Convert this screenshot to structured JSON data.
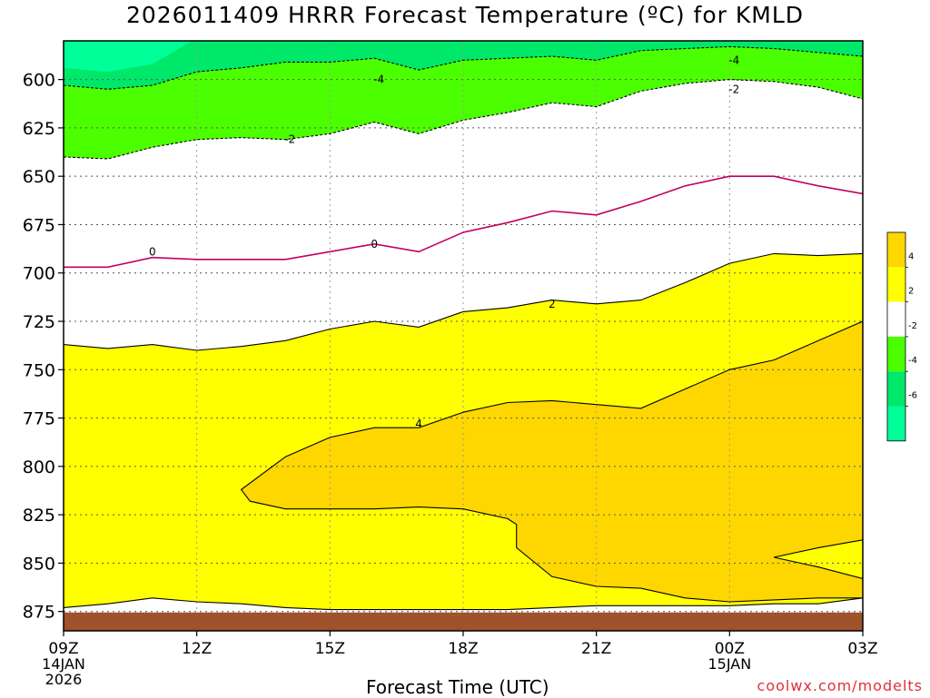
{
  "page": {
    "title": "2026011409 HRRR Forecast Temperature (ºC) for KMLD",
    "xlabel": "Forecast Time (UTC)",
    "credit": "coolwx.com/modelts"
  },
  "chart_data": {
    "type": "contour",
    "title": "2026011409 HRRR Forecast Temperature (ºC) for KMLD",
    "xlabel": "Forecast Time (UTC)",
    "ylabel": "",
    "x_range_hours": [
      0,
      18
    ],
    "ylim": [
      580,
      885
    ],
    "y_ticks": [
      {
        "label": "600",
        "value": 600
      },
      {
        "label": "625",
        "value": 625
      },
      {
        "label": "650",
        "value": 650
      },
      {
        "label": "675",
        "value": 675
      },
      {
        "label": "700",
        "value": 700
      },
      {
        "label": "725",
        "value": 725
      },
      {
        "label": "750",
        "value": 750
      },
      {
        "label": "775",
        "value": 775
      },
      {
        "label": "800",
        "value": 800
      },
      {
        "label": "825",
        "value": 825
      },
      {
        "label": "850",
        "value": 850
      },
      {
        "label": "875",
        "value": 875
      }
    ],
    "x_ticks": [
      {
        "hour": 0,
        "label": "09Z",
        "sub1": "14JAN",
        "sub2": "2026"
      },
      {
        "hour": 3,
        "label": "12Z",
        "sub1": "",
        "sub2": ""
      },
      {
        "hour": 6,
        "label": "15Z",
        "sub1": "",
        "sub2": ""
      },
      {
        "hour": 9,
        "label": "18Z",
        "sub1": "",
        "sub2": ""
      },
      {
        "hour": 12,
        "label": "21Z",
        "sub1": "",
        "sub2": ""
      },
      {
        "hour": 15,
        "label": "00Z",
        "sub1": "15JAN",
        "sub2": ""
      },
      {
        "hour": 18,
        "label": "03Z",
        "sub1": "",
        "sub2": ""
      }
    ],
    "contours": [
      {
        "level": -4,
        "style": "dashed",
        "color": "#000000",
        "points": [
          [
            0,
            603
          ],
          [
            1,
            605
          ],
          [
            2,
            603
          ],
          [
            3,
            596
          ],
          [
            4,
            594
          ],
          [
            5,
            591
          ],
          [
            6,
            591
          ],
          [
            7,
            589
          ],
          [
            8,
            595
          ],
          [
            9,
            590
          ],
          [
            10,
            589
          ],
          [
            11,
            588
          ],
          [
            12,
            590
          ],
          [
            13,
            585
          ],
          [
            14,
            584
          ],
          [
            15,
            583
          ],
          [
            16,
            584
          ],
          [
            17,
            586
          ],
          [
            18,
            588
          ]
        ]
      },
      {
        "level": -2,
        "style": "dashed",
        "color": "#000000",
        "points": [
          [
            0,
            640
          ],
          [
            1,
            641
          ],
          [
            2,
            635
          ],
          [
            3,
            631
          ],
          [
            4,
            630
          ],
          [
            5,
            631
          ],
          [
            6,
            628
          ],
          [
            7,
            622
          ],
          [
            8,
            628
          ],
          [
            9,
            621
          ],
          [
            10,
            617
          ],
          [
            11,
            612
          ],
          [
            12,
            614
          ],
          [
            13,
            606
          ],
          [
            14,
            602
          ],
          [
            15,
            600
          ],
          [
            16,
            601
          ],
          [
            17,
            604
          ],
          [
            18,
            610
          ]
        ]
      },
      {
        "level": 0,
        "style": "solid",
        "color": "#c00060",
        "points": [
          [
            0,
            697
          ],
          [
            1,
            697
          ],
          [
            2,
            692
          ],
          [
            3,
            693
          ],
          [
            4,
            693
          ],
          [
            5,
            693
          ],
          [
            6,
            689
          ],
          [
            7,
            685
          ],
          [
            8,
            689
          ],
          [
            9,
            679
          ],
          [
            10,
            674
          ],
          [
            11,
            668
          ],
          [
            12,
            670
          ],
          [
            13,
            663
          ],
          [
            14,
            655
          ],
          [
            15,
            650
          ],
          [
            16,
            650
          ],
          [
            17,
            655
          ],
          [
            18,
            659
          ]
        ]
      },
      {
        "level": 2,
        "style": "solid",
        "color": "#000000",
        "points": [
          [
            0,
            737
          ],
          [
            1,
            739
          ],
          [
            2,
            737
          ],
          [
            3,
            740
          ],
          [
            4,
            738
          ],
          [
            5,
            735
          ],
          [
            6,
            729
          ],
          [
            7,
            725
          ],
          [
            8,
            728
          ],
          [
            9,
            720
          ],
          [
            10,
            718
          ],
          [
            11,
            714
          ],
          [
            12,
            716
          ],
          [
            13,
            714
          ],
          [
            14,
            705
          ],
          [
            15,
            695
          ],
          [
            16,
            690
          ],
          [
            17,
            691
          ],
          [
            18,
            690
          ]
        ]
      },
      {
        "level": 4,
        "style": "solid",
        "color": "#000000",
        "points": [
          [
            18,
            725
          ],
          [
            17,
            735
          ],
          [
            16,
            745
          ],
          [
            15,
            750
          ],
          [
            14,
            760
          ],
          [
            13,
            770
          ],
          [
            12,
            768
          ],
          [
            11,
            766
          ],
          [
            10,
            767
          ],
          [
            9,
            772
          ],
          [
            8,
            780
          ],
          [
            7,
            780
          ],
          [
            6,
            785
          ],
          [
            5,
            795
          ],
          [
            4,
            812
          ],
          [
            4.2,
            818
          ],
          [
            5,
            822
          ],
          [
            6,
            822
          ],
          [
            7,
            822
          ],
          [
            8,
            821
          ],
          [
            9,
            822
          ],
          [
            10,
            827
          ],
          [
            10.2,
            830
          ],
          [
            10.2,
            842
          ],
          [
            11,
            857
          ],
          [
            12,
            862
          ],
          [
            13,
            863
          ],
          [
            14,
            868
          ],
          [
            15,
            870
          ],
          [
            16,
            869
          ],
          [
            17,
            868
          ],
          [
            18,
            868
          ]
        ]
      },
      {
        "level": 4,
        "style": "solid",
        "color": "#000000",
        "points": [
          [
            18,
            838
          ],
          [
            17,
            842
          ],
          [
            16,
            847
          ],
          [
            17,
            852
          ],
          [
            18,
            858
          ]
        ]
      },
      {
        "level": 2,
        "style": "solid",
        "color": "#000000",
        "points": [
          [
            0,
            873
          ],
          [
            1,
            871
          ],
          [
            2,
            868
          ],
          [
            3,
            870
          ],
          [
            4,
            871
          ],
          [
            5,
            873
          ],
          [
            6,
            874
          ],
          [
            7,
            874
          ],
          [
            8,
            874
          ],
          [
            9,
            874
          ],
          [
            10,
            874
          ],
          [
            11,
            873
          ],
          [
            12,
            872
          ],
          [
            13,
            872
          ],
          [
            14,
            872
          ],
          [
            15,
            872
          ],
          [
            16,
            871
          ],
          [
            17,
            871
          ],
          [
            18,
            868
          ]
        ]
      }
    ],
    "contour_labels": [
      {
        "text": "-4",
        "hour": 7.1,
        "p": 600
      },
      {
        "text": "-4",
        "hour": 15.1,
        "p": 590
      },
      {
        "text": "-2",
        "hour": 5.1,
        "p": 631
      },
      {
        "text": "-2",
        "hour": 15.1,
        "p": 605
      },
      {
        "text": "0",
        "hour": 2,
        "p": 689
      },
      {
        "text": "0",
        "hour": 7,
        "p": 685
      },
      {
        "text": "2",
        "hour": 11,
        "p": 716
      },
      {
        "text": "4",
        "hour": 8,
        "p": 778
      }
    ],
    "ground": {
      "color": "#a0522d",
      "label": ""
    },
    "fill_colors": {
      "below_-6": "#00ff99",
      "-6_to_-4": "#00e86a",
      "-4_to_-2": "#4cff00",
      "-2_to_2": "#ffffff",
      "2_to_4": "#ffff00",
      "above_4": "#ffd700"
    },
    "colorbar": {
      "labels": [
        "4",
        "2",
        "-2",
        "-4",
        "-6"
      ],
      "segments": [
        {
          "from": 4,
          "to": 6,
          "color": "#ffd700"
        },
        {
          "from": 2,
          "to": 4,
          "color": "#ffff00"
        },
        {
          "from": -2,
          "to": 2,
          "color": "#ffffff"
        },
        {
          "from": -4,
          "to": -2,
          "color": "#4cff00"
        },
        {
          "from": -6,
          "to": -4,
          "color": "#00e86a"
        },
        {
          "from": -8,
          "to": -6,
          "color": "#00ff99"
        }
      ]
    }
  }
}
